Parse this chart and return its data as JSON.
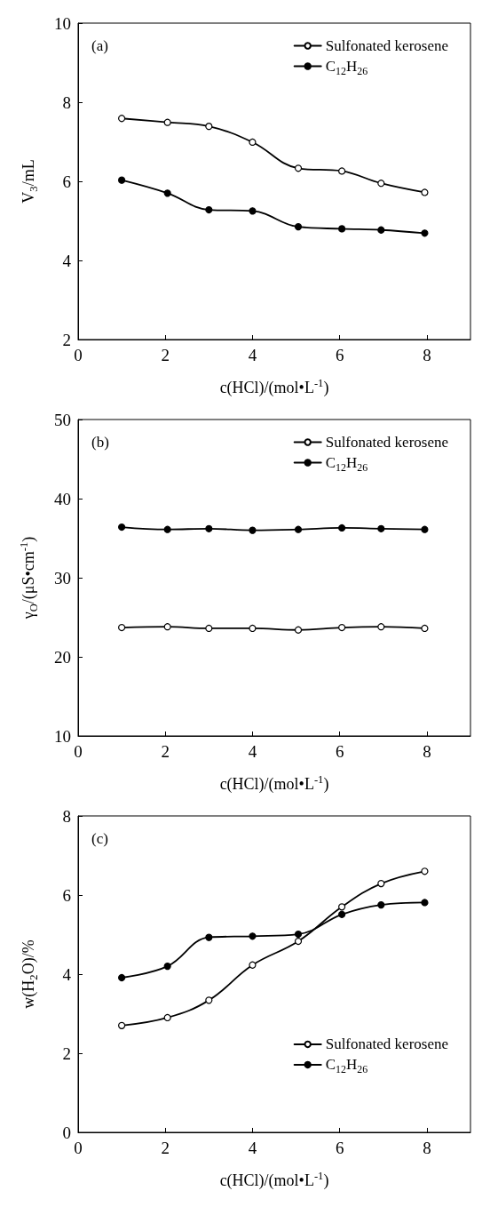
{
  "chart_data": [
    {
      "type": "line",
      "title": "(a)",
      "xlabel": "c(HCl)/(mol•L$^{-1}$)",
      "ylabel": "V$_{3}$/mL",
      "x": [
        1,
        2.05,
        3,
        4,
        5.05,
        6.05,
        6.95,
        7.95
      ],
      "series": [
        {
          "name": "Sulfonated kerosene",
          "color": "#000000",
          "colors": [
            "#ffffff",
            "#ffffff",
            "#ffffff",
            "#ffffff",
            "#ffffff",
            "#ffffff",
            "#ffffff",
            "#ffffff"
          ],
          "values": [
            7.59,
            7.49,
            7.39,
            6.99,
            6.33,
            6.26,
            5.95,
            5.72
          ]
        },
        {
          "name": "C$_{12}$H$_{26}$",
          "color": "#000000",
          "values": [
            6.03,
            5.7,
            5.28,
            5.25,
            4.85,
            4.8,
            4.77,
            4.69
          ]
        }
      ],
      "xlim": [
        0,
        9
      ],
      "xticks": [
        0,
        2,
        4,
        6,
        8
      ],
      "ylim": [
        2,
        10
      ],
      "yticks": [
        2,
        4,
        6,
        8,
        10
      ],
      "grid": false,
      "legend": "top right",
      "marker": "circle",
      "line_style": "solid"
    },
    {
      "type": "line",
      "title": "(b)",
      "xlabel": "c(HCl)/(mol•L$^{-1}$)",
      "ylabel": "γ$_{O}$/(μS•cm$^{-1}$)",
      "x": [
        1,
        2.05,
        3,
        4,
        5.05,
        6.05,
        6.95,
        7.95
      ],
      "series": [
        {
          "name": "Sulfonated kerosene",
          "color": "#000000",
          "colors": [
            "#ffffff",
            "#ffffff",
            "#ffffff",
            "#ffffff",
            "#ffffff",
            "#ffffff",
            "#ffffff",
            "#ffffff"
          ],
          "values": [
            23.7,
            23.8,
            23.6,
            23.6,
            23.4,
            23.7,
            23.8,
            23.6
          ]
        },
        {
          "name": "C$_{12}$H$_{26}$",
          "color": "#000000",
          "values": [
            36.4,
            36.1,
            36.2,
            36.0,
            36.1,
            36.3,
            36.2,
            36.1
          ]
        }
      ],
      "xlim": [
        0,
        9
      ],
      "xticks": [
        0,
        2,
        4,
        6,
        8
      ],
      "ylim": [
        10,
        50
      ],
      "yticks": [
        10,
        20,
        30,
        40,
        50
      ],
      "grid": false,
      "legend": "top right",
      "marker": "circle",
      "line_style": "solid"
    },
    {
      "type": "line",
      "title": "(c)",
      "xlabel": "c(HCl)/(mol•L$^{-1}$)",
      "ylabel": "w(H$_{2}$O)/%",
      "x": [
        1,
        2.05,
        3,
        4,
        5.05,
        6.05,
        6.95,
        7.95
      ],
      "series": [
        {
          "name": "Sulfonated kerosene",
          "color": "#000000",
          "colors": [
            "#ffffff",
            "#ffffff",
            "#ffffff",
            "#ffffff",
            "#ffffff",
            "#ffffff",
            "#ffffff",
            "#ffffff"
          ],
          "values": [
            2.7,
            2.9,
            3.34,
            4.23,
            4.83,
            5.7,
            6.29,
            6.6
          ]
        },
        {
          "name": "C$_{12}$H$_{26}$",
          "color": "#000000",
          "values": [
            3.91,
            4.2,
            4.93,
            4.96,
            5.01,
            5.51,
            5.75,
            5.81
          ]
        }
      ],
      "xlim": [
        0,
        9
      ],
      "xticks": [
        0,
        2,
        4,
        6,
        8
      ],
      "ylim": [
        0,
        8
      ],
      "yticks": [
        0,
        2,
        4,
        6,
        8
      ],
      "grid": false,
      "legend": "bottom right",
      "marker": "circle",
      "line_style": "solid"
    }
  ]
}
